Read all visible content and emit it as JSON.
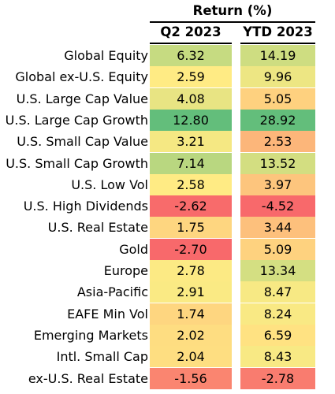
{
  "header": {
    "title": "Return (%)",
    "col1": "Q2 2023",
    "col2": "YTD 2023"
  },
  "chart_data": {
    "type": "table",
    "title": "Return (%)",
    "columns": [
      "Q2 2023",
      "YTD 2023"
    ],
    "rows": [
      {
        "label": "Global Equity",
        "values": [
          "6.32",
          "14.19"
        ]
      },
      {
        "label": "Global ex-U.S. Equity",
        "values": [
          "2.59",
          "9.96"
        ]
      },
      {
        "label": "U.S. Large Cap Value",
        "values": [
          "4.08",
          "5.05"
        ]
      },
      {
        "label": "U.S. Large Cap Growth",
        "values": [
          "12.80",
          "28.92"
        ]
      },
      {
        "label": "U.S. Small Cap Value",
        "values": [
          "3.21",
          "2.53"
        ]
      },
      {
        "label": "U.S. Small Cap Growth",
        "values": [
          "7.14",
          "13.52"
        ]
      },
      {
        "label": "U.S. Low Vol",
        "values": [
          "2.58",
          "3.97"
        ]
      },
      {
        "label": "U.S. High Dividends",
        "values": [
          "-2.62",
          "-4.52"
        ]
      },
      {
        "label": "U.S. Real Estate",
        "values": [
          "1.75",
          "3.44"
        ]
      },
      {
        "label": "Gold",
        "values": [
          "-2.70",
          "5.09"
        ]
      },
      {
        "label": "Europe",
        "values": [
          "2.78",
          "13.34"
        ]
      },
      {
        "label": "Asia-Pacific",
        "values": [
          "2.91",
          "8.47"
        ]
      },
      {
        "label": "EAFE Min Vol",
        "values": [
          "1.74",
          "8.24"
        ]
      },
      {
        "label": "Emerging Markets",
        "values": [
          "2.02",
          "6.59"
        ]
      },
      {
        "label": "Intl. Small Cap",
        "values": [
          "2.04",
          "8.43"
        ]
      },
      {
        "label": "ex-U.S. Real Estate",
        "values": [
          "-1.56",
          "-2.78"
        ]
      }
    ],
    "color_scale": {
      "low": "#f8696b",
      "mid": "#ffeb84",
      "high": "#63be7b"
    }
  }
}
